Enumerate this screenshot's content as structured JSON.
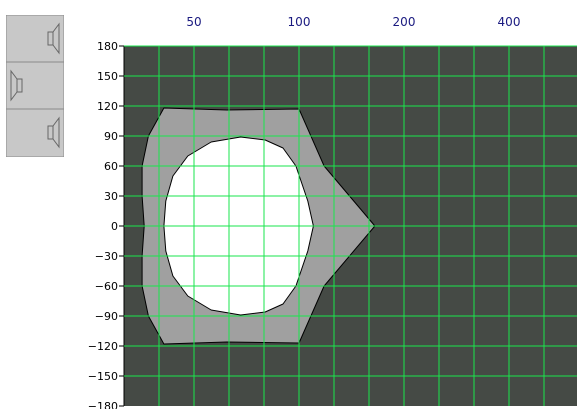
{
  "chart_data": {
    "type": "area",
    "description_free": true,
    "x": {
      "scale": "log",
      "tick_labels": [
        "50",
        "100",
        "200",
        "400"
      ],
      "tick_values": [
        50,
        100,
        200,
        400
      ]
    },
    "y": {
      "tick_values": [
        180,
        150,
        120,
        90,
        60,
        30,
        0,
        -30,
        -60,
        -90,
        -120,
        -150,
        -180
      ],
      "tick_labels": [
        "180",
        "150",
        "120",
        "90",
        "60",
        "30",
        "0",
        "−30",
        "−60",
        "−90",
        "−120",
        "−150",
        "−180"
      ],
      "ylim": [
        -180,
        180
      ]
    },
    "grid": true,
    "series": [
      {
        "points": [
          [
            36,
            0
          ],
          [
            35.5,
            30
          ],
          [
            35.5,
            60
          ],
          [
            37,
            90
          ],
          [
            41,
            118
          ],
          [
            62,
            116
          ],
          [
            100,
            117
          ],
          [
            118,
            60
          ],
          [
            165,
            0
          ],
          [
            118,
            -60
          ],
          [
            100,
            -117
          ],
          [
            62,
            -116
          ],
          [
            41,
            -118
          ],
          [
            37,
            -90
          ],
          [
            35.5,
            -60
          ],
          [
            35.5,
            -30
          ],
          [
            36,
            0
          ]
        ]
      },
      {
        "points": [
          [
            41,
            0
          ],
          [
            41.5,
            25
          ],
          [
            43.5,
            50
          ],
          [
            48,
            70
          ],
          [
            56,
            84
          ],
          [
            68,
            89
          ],
          [
            80,
            86
          ],
          [
            90,
            78
          ],
          [
            98,
            60
          ],
          [
            106,
            25
          ],
          [
            110,
            0
          ],
          [
            106,
            -25
          ],
          [
            98,
            -60
          ],
          [
            90,
            -78
          ],
          [
            80,
            -86
          ],
          [
            68,
            -89
          ],
          [
            56,
            -84
          ],
          [
            48,
            -70
          ],
          [
            43.5,
            -50
          ],
          [
            41.5,
            -25
          ],
          [
            41,
            0
          ]
        ]
      }
    ],
    "colors": {
      "background": "#454a45",
      "grid": "#19e64c",
      "outer_fill": "#a0a0a0",
      "inner_fill": "#ffffff",
      "x_tick_text": "#1a1a80",
      "y_tick_text": "#000000"
    }
  },
  "icon": {
    "name": "loudspeaker-array-icon"
  }
}
